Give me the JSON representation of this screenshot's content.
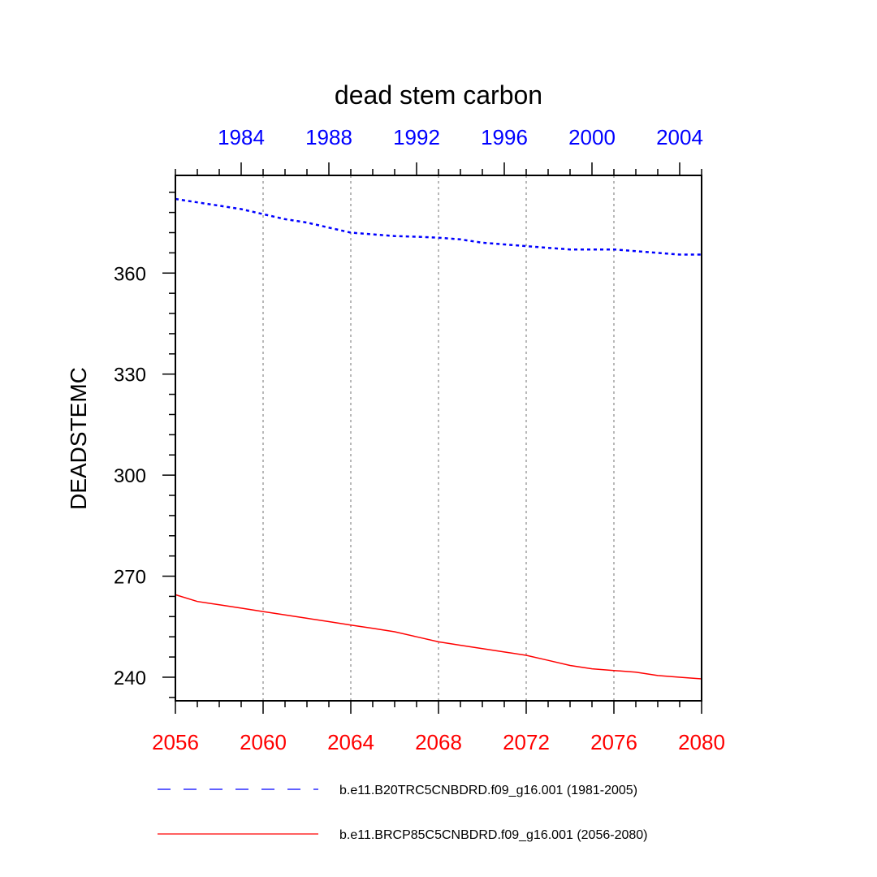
{
  "chart_data": {
    "type": "line",
    "title": "dead stem carbon",
    "ylabel": "DEADSTEMC",
    "xlabel": "",
    "ylim": [
      233,
      389
    ],
    "yticks": [
      240,
      270,
      300,
      330,
      360
    ],
    "y_minor_step": 6,
    "grid": "vertical-dotted",
    "bottom_axis": {
      "color": "#ff0000",
      "xlim": [
        2056,
        2080
      ],
      "ticks": [
        2056,
        2060,
        2064,
        2068,
        2072,
        2076,
        2080
      ]
    },
    "top_axis": {
      "color": "#0000ff",
      "xlim": [
        1981,
        2005
      ],
      "ticks": [
        1984,
        1988,
        1992,
        1996,
        2000,
        2004
      ]
    },
    "series": [
      {
        "name": "b.e11.B20TRC5CNBDRD.f09_g16.001 (1981-2005)",
        "axis": "top",
        "color": "#0000ff",
        "dash": "dashed",
        "x": [
          1981,
          1982,
          1983,
          1984,
          1985,
          1986,
          1987,
          1988,
          1989,
          1990,
          1991,
          1992,
          1993,
          1994,
          1995,
          1996,
          1997,
          1998,
          1999,
          2000,
          2001,
          2002,
          2003,
          2004,
          2005
        ],
        "y": [
          382,
          381,
          380,
          379,
          377.5,
          376,
          375,
          373.5,
          372,
          371.5,
          371,
          370.8,
          370.5,
          370,
          369,
          368.5,
          368,
          367.5,
          367,
          367,
          367,
          366.5,
          366,
          365.5,
          365.5
        ]
      },
      {
        "name": "b.e11.BRCP85C5CNBDRD.f09_g16.001 (2056-2080)",
        "axis": "bottom",
        "color": "#ff0000",
        "dash": "solid",
        "x": [
          2056,
          2057,
          2058,
          2059,
          2060,
          2061,
          2062,
          2063,
          2064,
          2065,
          2066,
          2067,
          2068,
          2069,
          2070,
          2071,
          2072,
          2073,
          2074,
          2075,
          2076,
          2077,
          2078,
          2079,
          2080
        ],
        "y": [
          264.5,
          262.5,
          261.5,
          260.5,
          259.5,
          258.5,
          257.5,
          256.5,
          255.5,
          254.5,
          253.5,
          252,
          250.5,
          249.5,
          248.5,
          247.5,
          246.5,
          245,
          243.5,
          242.5,
          242,
          241.5,
          240.5,
          240,
          239.5
        ]
      }
    ]
  }
}
